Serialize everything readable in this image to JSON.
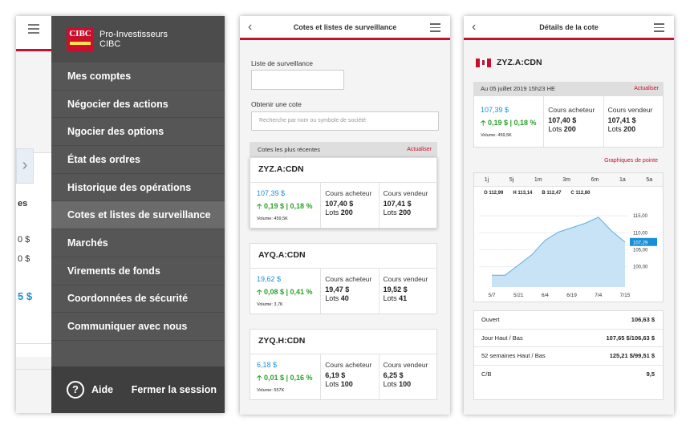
{
  "menu_screen": {
    "brand": {
      "line1": "Pro-Investisseurs",
      "line2": "CIBC",
      "logo_text": "CIBC"
    },
    "items": [
      {
        "label": "Mes comptes"
      },
      {
        "label": "Négocier des actions"
      },
      {
        "label": "Ngocier des options"
      },
      {
        "label": "État des ordres"
      },
      {
        "label": "Historique des opérations"
      },
      {
        "label": "Cotes et listes de surveillance",
        "active": true
      },
      {
        "label": "Marchés"
      },
      {
        "label": "Virements de fonds"
      },
      {
        "label": "Coordonnées de sécurité"
      },
      {
        "label": "Communiquer avec nous"
      }
    ],
    "footer": {
      "help_glyph": "?",
      "help_label": "Aide",
      "logout_label": "Fermer la session"
    },
    "behind": {
      "text_es": "es",
      "text_0a": "0 $",
      "text_0b": "0 $",
      "text_5": "5 $"
    }
  },
  "watchlist_screen": {
    "title": "Cotes et listes de surveillance",
    "watchlist_label": "Liste de surveillance",
    "watchlist_value": "",
    "quote_label": "Obtenir une cote",
    "search_placeholder": "Recherche par nom ou symbole de société",
    "recent_label": "Cotes les plus récentes",
    "refresh_label": "Actualiser",
    "quotes": [
      {
        "symbol": "ZYZ.A:CDN",
        "price": "107,39 $",
        "change": "0,19 $ | 0,18 %",
        "volume": "Volume: 459,5K",
        "bid_label": "Cours acheteur",
        "bid": "107,40 $",
        "bid_lots_label": "Lots",
        "bid_lots": "200",
        "ask_label": "Cours vendeur",
        "ask": "107,41 $",
        "ask_lots_label": "Lots",
        "ask_lots": "200"
      },
      {
        "symbol": "AYQ.A:CDN",
        "price": "19,62 $",
        "change": "0,08 $ | 0,41 %",
        "volume": "Volume: 3,7K",
        "bid_label": "Cours acheteur",
        "bid": "19,47 $",
        "bid_lots_label": "Lots",
        "bid_lots": "40",
        "ask_label": "Cours vendeur",
        "ask": "19,52 $",
        "ask_lots_label": "Lots",
        "ask_lots": "41"
      },
      {
        "symbol": "ZYQ.H:CDN",
        "price": "6,18 $",
        "change": "0,01 $ | 0,16 %",
        "volume": "Volume: 557K",
        "bid_label": "Cours acheteur",
        "bid": "6,19 $",
        "bid_lots_label": "Lots",
        "bid_lots": "100",
        "ask_label": "Cours vendeur",
        "ask": "6,25 $",
        "ask_lots_label": "Lots",
        "ask_lots": "100"
      }
    ]
  },
  "details_screen": {
    "title": "Détails de la cote",
    "symbol": "ZYZ.A:CDN",
    "date": "Au 05 juillet 2019 15h23 HE",
    "refresh_label": "Actualiser",
    "price": "107,39 $",
    "change": "0,19 $ | 0,18 %",
    "volume": "Volume: 459,5K",
    "bid_label": "Cours acheteur",
    "bid": "107,40 $",
    "bid_lots_label": "Lots",
    "bid_lots": "200",
    "ask_label": "Cours vendeur",
    "ask": "107,41 $",
    "ask_lots_label": "Lots",
    "ask_lots": "200",
    "charts_link": "Graphiques de pointe",
    "periods": [
      "1j",
      "5j",
      "1m",
      "3m",
      "6m",
      "1a",
      "5a"
    ],
    "ohlc": {
      "open": "O 112,99",
      "high": "H 113,14",
      "bid": "B 112,47",
      "close": "C 112,80"
    },
    "stats": [
      {
        "label": "Ouvert",
        "value": "106,63 $"
      },
      {
        "label": "Jour Haut / Bas",
        "value": "107,65 $/106,63 $"
      },
      {
        "label": "52 semaines Haut / Bas",
        "value": "125,21 $/99,51 $"
      },
      {
        "label": "C/B",
        "value": "9,5"
      }
    ]
  },
  "chart_data": {
    "type": "area",
    "x": [
      "5/7",
      "5/14",
      "5/21",
      "5/28",
      "6/4",
      "6/11",
      "6/19",
      "6/26",
      "7/4",
      "7/11",
      "7/15"
    ],
    "x_ticks": [
      "5/7",
      "5/21",
      "6/4",
      "6/19",
      "7/4",
      "7/15"
    ],
    "series": [
      {
        "values": [
          97.5,
          97.5,
          100.5,
          103.5,
          107.8,
          110.2,
          111.5,
          112.8,
          114.6,
          110.5,
          107.29
        ]
      }
    ],
    "y_ticks": [
      "115,00",
      "110,00",
      "105,00",
      "100,00"
    ],
    "y_tick_values": [
      115,
      110,
      105,
      100
    ],
    "ylim": [
      94,
      120
    ],
    "current_label": "107,29",
    "current_value": 107.29,
    "colors": {
      "fill": "#c7e3f5",
      "line": "#5aaee0",
      "marker": "#1a8fd8"
    }
  }
}
